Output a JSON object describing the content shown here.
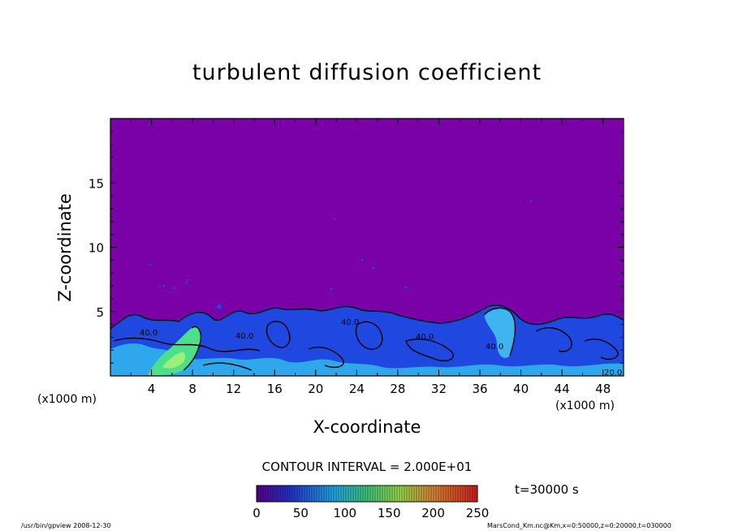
{
  "chart_data": {
    "type": "heatmap",
    "title": "turbulent diffusion coefficient",
    "xlabel": "X-coordinate",
    "ylabel": "Z-coordinate",
    "x_unit_label": "(x1000 m)",
    "x_ticks": [
      4,
      8,
      12,
      16,
      20,
      24,
      28,
      32,
      36,
      40,
      44,
      48
    ],
    "y_ticks": [
      5,
      10,
      15
    ],
    "xlim": [
      0,
      50
    ],
    "ylim": [
      0,
      20
    ],
    "contour_interval": "CONTOUR INTERVAL = 2.000E+01",
    "time_label": "t=30000 s",
    "colorbar": {
      "ticks": [
        0,
        50,
        100,
        150,
        200,
        250
      ],
      "range": [
        0,
        250
      ]
    },
    "contour_labels": [
      "40.0",
      "40.0",
      "40.0",
      "40.0",
      "40.0",
      "20.0"
    ],
    "colors": {
      "background_field": "#7a00a8",
      "low_values": "#1a3fdc",
      "mid_values": "#33c4f0",
      "high_values": "#4ce08a"
    }
  },
  "footer": {
    "left": "/usr/bin/gpview   2008-12-30",
    "right": "MarsCond_Km.nc@Km,x=0:50000,z=0:20000,t=030000"
  }
}
